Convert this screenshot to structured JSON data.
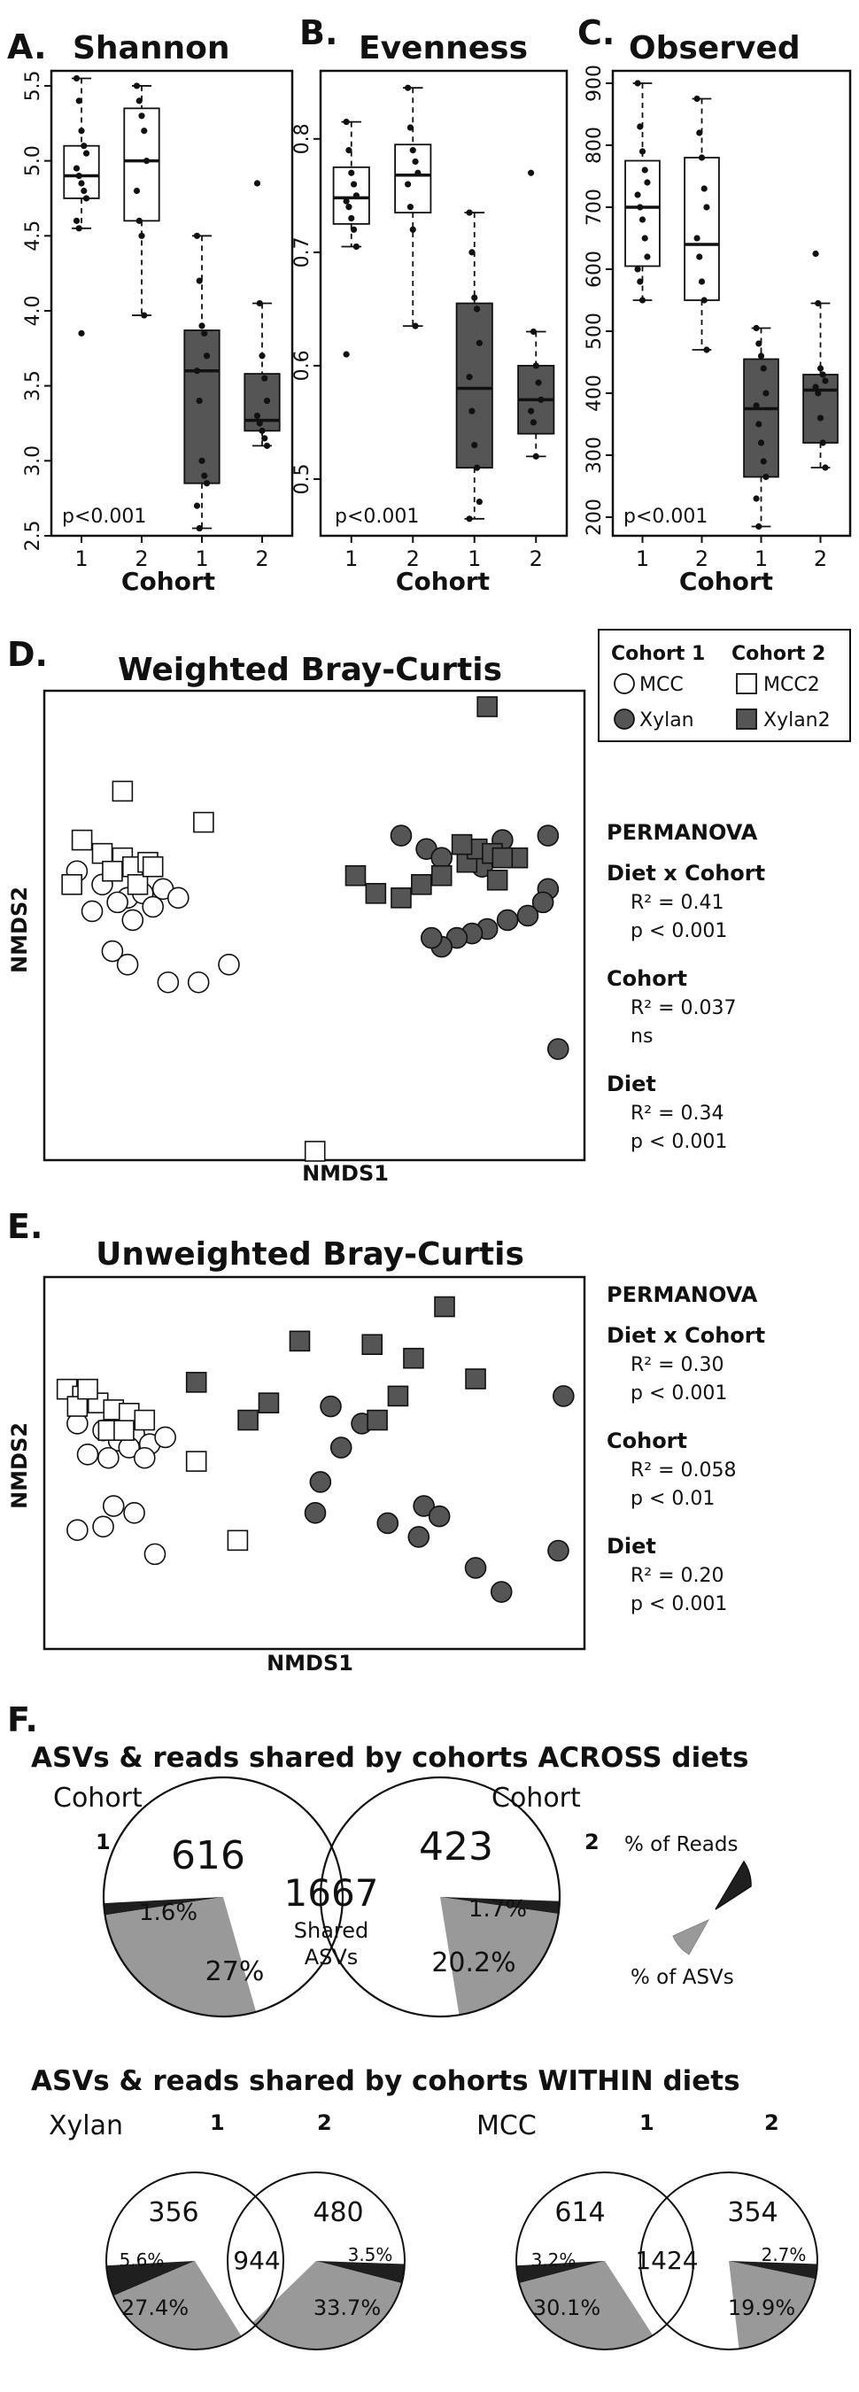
{
  "chart_data": [
    {
      "panel": "A.",
      "title": "Shannon",
      "type": "box",
      "xlabel": "Cohort",
      "ylim": [
        2.5,
        5.6
      ],
      "yticks": [
        "2.5",
        "3.0",
        "3.5",
        "4.0",
        "4.5",
        "5.0",
        "5.5"
      ],
      "categories": [
        "1",
        "2",
        "1",
        "2"
      ],
      "groups": [
        "MCC cohort 1",
        "MCC cohort 2",
        "Xylan cohort 1",
        "Xylan cohort 2"
      ],
      "fills": [
        "#ffffff",
        "#ffffff",
        "#555555",
        "#555555"
      ],
      "boxes": [
        {
          "q1": 4.75,
          "median": 4.9,
          "q3": 5.1,
          "wlo": 4.55,
          "whi": 5.55
        },
        {
          "q1": 4.6,
          "median": 5.0,
          "q3": 5.35,
          "wlo": 3.97,
          "whi": 5.5
        },
        {
          "q1": 2.85,
          "median": 3.6,
          "q3": 3.87,
          "wlo": 2.55,
          "whi": 4.5
        },
        {
          "q1": 3.2,
          "median": 3.27,
          "q3": 3.58,
          "wlo": 3.1,
          "whi": 4.05
        }
      ],
      "points": [
        [
          5.55,
          5.4,
          5.2,
          5.1,
          5.05,
          4.95,
          4.9,
          4.85,
          4.8,
          4.75,
          4.6,
          4.55,
          3.85
        ],
        [
          5.5,
          5.4,
          5.3,
          5.2,
          5.0,
          4.8,
          4.6,
          4.5,
          3.97
        ],
        [
          4.5,
          4.2,
          3.9,
          3.85,
          3.7,
          3.6,
          3.4,
          3.0,
          2.9,
          2.85,
          2.7,
          2.55
        ],
        [
          4.85,
          4.05,
          3.7,
          3.55,
          3.4,
          3.3,
          3.25,
          3.2,
          3.15,
          3.1
        ]
      ],
      "pvalue": "p<0.001"
    },
    {
      "panel": "B.",
      "title": "Evenness",
      "type": "box",
      "xlabel": "Cohort",
      "ylim": [
        0.45,
        0.86
      ],
      "yticks": [
        "0.5",
        "0.6",
        "0.7",
        "0.8"
      ],
      "categories": [
        "1",
        "2",
        "1",
        "2"
      ],
      "groups": [
        "MCC cohort 1",
        "MCC cohort 2",
        "Xylan cohort 1",
        "Xylan cohort 2"
      ],
      "fills": [
        "#ffffff",
        "#ffffff",
        "#555555",
        "#555555"
      ],
      "boxes": [
        {
          "q1": 0.725,
          "median": 0.748,
          "q3": 0.775,
          "wlo": 0.705,
          "whi": 0.815
        },
        {
          "q1": 0.735,
          "median": 0.768,
          "q3": 0.795,
          "wlo": 0.635,
          "whi": 0.845
        },
        {
          "q1": 0.51,
          "median": 0.58,
          "q3": 0.655,
          "wlo": 0.465,
          "whi": 0.735
        },
        {
          "q1": 0.54,
          "median": 0.57,
          "q3": 0.6,
          "wlo": 0.52,
          "whi": 0.63
        }
      ],
      "points": [
        [
          0.815,
          0.79,
          0.77,
          0.76,
          0.75,
          0.745,
          0.74,
          0.73,
          0.72,
          0.705,
          0.61
        ],
        [
          0.845,
          0.81,
          0.79,
          0.78,
          0.77,
          0.76,
          0.74,
          0.72,
          0.635
        ],
        [
          0.735,
          0.7,
          0.66,
          0.65,
          0.62,
          0.59,
          0.56,
          0.53,
          0.51,
          0.48,
          0.465
        ],
        [
          0.77,
          0.63,
          0.6,
          0.585,
          0.57,
          0.56,
          0.55,
          0.52
        ]
      ],
      "pvalue": "p<0.001"
    },
    {
      "panel": "C.",
      "title": "Observed",
      "type": "box",
      "xlabel": "Cohort",
      "ylim": [
        170,
        920
      ],
      "yticks": [
        "200",
        "300",
        "400",
        "500",
        "600",
        "700",
        "800",
        "900"
      ],
      "categories": [
        "1",
        "2",
        "1",
        "2"
      ],
      "groups": [
        "MCC cohort 1",
        "MCC cohort 2",
        "Xylan cohort 1",
        "Xylan cohort 2"
      ],
      "fills": [
        "#ffffff",
        "#ffffff",
        "#555555",
        "#555555"
      ],
      "boxes": [
        {
          "q1": 605,
          "median": 700,
          "q3": 775,
          "wlo": 550,
          "whi": 900
        },
        {
          "q1": 550,
          "median": 640,
          "q3": 780,
          "wlo": 470,
          "whi": 875
        },
        {
          "q1": 265,
          "median": 375,
          "q3": 455,
          "wlo": 185,
          "whi": 505
        },
        {
          "q1": 320,
          "median": 405,
          "q3": 430,
          "wlo": 280,
          "whi": 545
        }
      ],
      "points": [
        [
          900,
          830,
          790,
          760,
          740,
          720,
          700,
          680,
          650,
          620,
          600,
          580,
          550
        ],
        [
          875,
          820,
          780,
          730,
          700,
          650,
          620,
          580,
          550,
          470
        ],
        [
          505,
          480,
          460,
          440,
          400,
          380,
          350,
          320,
          290,
          265,
          230,
          185
        ],
        [
          625,
          545,
          440,
          430,
          420,
          410,
          400,
          360,
          320,
          280
        ]
      ],
      "pvalue": "p<0.001"
    },
    {
      "panel": "D.",
      "title": "Weighted Bray-Curtis",
      "type": "scatter",
      "xlabel": "NMDS1",
      "ylabel": "NMDS2",
      "xlim": [
        0,
        1
      ],
      "ylim": [
        0,
        1
      ],
      "series": [
        {
          "name": "MCC",
          "cohort": "Cohort 1",
          "marker": "circle",
          "fill": "#ffffff",
          "x": [
            0.04,
            0.09,
            0.14,
            0.17,
            0.21,
            0.24,
            0.07,
            0.12,
            0.15,
            0.19,
            0.11,
            0.14,
            0.22,
            0.28,
            0.34
          ],
          "y": [
            0.63,
            0.6,
            0.57,
            0.58,
            0.59,
            0.57,
            0.54,
            0.56,
            0.52,
            0.55,
            0.45,
            0.42,
            0.38,
            0.38,
            0.42
          ]
        },
        {
          "name": "MCC2",
          "cohort": "Cohort 2",
          "marker": "square",
          "fill": "#ffffff",
          "x": [
            0.03,
            0.05,
            0.09,
            0.13,
            0.15,
            0.18,
            0.11,
            0.16,
            0.19,
            0.13,
            0.29,
            0.51
          ],
          "y": [
            0.6,
            0.7,
            0.67,
            0.66,
            0.64,
            0.65,
            0.63,
            0.6,
            0.64,
            0.81,
            0.74,
            0.0
          ]
        },
        {
          "name": "Xylan",
          "cohort": "Cohort 1",
          "marker": "circle",
          "fill": "#555555",
          "x": [
            0.68,
            0.73,
            0.76,
            0.84,
            0.88,
            0.97,
            0.97,
            0.96,
            0.93,
            0.89,
            0.85,
            0.82,
            0.79,
            0.76,
            0.74,
            0.99
          ],
          "y": [
            0.71,
            0.68,
            0.66,
            0.64,
            0.7,
            0.71,
            0.59,
            0.56,
            0.53,
            0.52,
            0.5,
            0.49,
            0.48,
            0.46,
            0.48,
            0.23
          ]
        },
        {
          "name": "Xylan2",
          "cohort": "Cohort 2",
          "marker": "square",
          "fill": "#555555",
          "x": [
            0.59,
            0.63,
            0.68,
            0.72,
            0.76,
            0.81,
            0.83,
            0.86,
            0.87,
            0.91,
            0.85,
            0.8,
            0.88
          ],
          "y": [
            0.62,
            0.58,
            0.57,
            0.6,
            0.62,
            0.65,
            0.68,
            0.67,
            0.61,
            0.66,
            1.0,
            0.69,
            0.66
          ]
        }
      ]
    },
    {
      "panel": "E.",
      "title": "Unweighted Bray-Curtis",
      "type": "scatter",
      "xlabel": "NMDS1",
      "ylabel": "NMDS2",
      "xlim": [
        0,
        1
      ],
      "ylim": [
        0,
        1
      ],
      "series": [
        {
          "name": "MCC",
          "cohort": "Cohort 1",
          "marker": "circle",
          "fill": "#ffffff",
          "x": [
            0.04,
            0.09,
            0.12,
            0.15,
            0.18,
            0.21,
            0.06,
            0.1,
            0.14,
            0.17,
            0.11,
            0.04,
            0.09,
            0.15,
            0.19
          ],
          "y": [
            0.62,
            0.6,
            0.57,
            0.59,
            0.56,
            0.58,
            0.53,
            0.52,
            0.55,
            0.52,
            0.38,
            0.31,
            0.32,
            0.36,
            0.24
          ]
        },
        {
          "name": "MCC2",
          "cohort": "Cohort 2",
          "marker": "square",
          "fill": "#ffffff",
          "x": [
            0.02,
            0.05,
            0.08,
            0.11,
            0.14,
            0.17,
            0.04,
            0.1,
            0.13,
            0.27,
            0.35,
            0.06
          ],
          "y": [
            0.72,
            0.7,
            0.68,
            0.66,
            0.65,
            0.63,
            0.67,
            0.6,
            0.6,
            0.51,
            0.28,
            0.72
          ]
        },
        {
          "name": "Xylan",
          "cohort": "Cohort 1",
          "marker": "circle",
          "fill": "#555555",
          "x": [
            0.53,
            0.59,
            0.55,
            0.51,
            0.5,
            0.64,
            0.71,
            0.74,
            0.7,
            0.81,
            0.98,
            0.97,
            0.86
          ],
          "y": [
            0.67,
            0.62,
            0.55,
            0.45,
            0.36,
            0.33,
            0.38,
            0.35,
            0.29,
            0.2,
            0.7,
            0.25,
            0.13
          ]
        },
        {
          "name": "Xylan2",
          "cohort": "Cohort 2",
          "marker": "square",
          "fill": "#555555",
          "x": [
            0.27,
            0.41,
            0.37,
            0.47,
            0.61,
            0.69,
            0.75,
            0.81,
            0.66,
            0.62
          ],
          "y": [
            0.74,
            0.68,
            0.63,
            0.86,
            0.85,
            0.81,
            0.96,
            0.75,
            0.7,
            0.63
          ]
        }
      ]
    }
  ],
  "panels": {
    "A": {
      "label": "A.",
      "title": "Shannon"
    },
    "B": {
      "label": "B.",
      "title": "Evenness"
    },
    "C": {
      "label": "C.",
      "title": "Observed"
    },
    "D": {
      "label": "D.",
      "title": "Weighted Bray-Curtis",
      "xlabel": "NMDS1",
      "ylabel": "NMDS2"
    },
    "E": {
      "label": "E.",
      "title": "Unweighted Bray-Curtis",
      "xlabel": "NMDS1",
      "ylabel": "NMDS2"
    },
    "F": {
      "label": "F."
    }
  },
  "axis_common": {
    "xlabel": "Cohort",
    "pvalue": "p<0.001"
  },
  "legend": {
    "cohort1": "Cohort 1",
    "cohort2": "Cohort 2",
    "mcc": "MCC",
    "mcc2": "MCC2",
    "xylan": "Xylan",
    "xylan2": "Xylan2"
  },
  "permanova_d": {
    "title": "PERMANOVA",
    "diet_cohort": "Diet x Cohort",
    "dc_r2": "R² = 0.41",
    "dc_p": "p < 0.001",
    "cohort": "Cohort",
    "c_r2": "R² = 0.037",
    "c_p": "ns",
    "diet": "Diet",
    "d_r2": "R² = 0.34",
    "d_p": "p < 0.001"
  },
  "permanova_e": {
    "title": "PERMANOVA",
    "diet_cohort": "Diet x Cohort",
    "dc_r2": "R² = 0.30",
    "dc_p": "p < 0.001",
    "cohort": "Cohort",
    "c_r2": "R² = 0.058",
    "c_p": "p < 0.01",
    "diet": "Diet",
    "d_r2": "R² = 0.20",
    "d_p": "p < 0.001"
  },
  "venn_across": {
    "heading": "ASVs & reads shared by cohorts ACROSS diets",
    "cohort_word": "Cohort",
    "c1": "1",
    "c2": "2",
    "left_only": "616",
    "right_only": "423",
    "shared": "1667",
    "shared_word": "Shared",
    "asvs_word": "ASVs",
    "left_reads": "1.6%",
    "left_asvs": "27%",
    "right_reads": "1.7%",
    "right_asvs": "20.2%",
    "key_reads": "% of Reads",
    "key_asvs": "% of ASVs",
    "read_wedge_pct": [
      1.6,
      1.7
    ],
    "asv_wedge_pct": [
      27,
      20.2
    ]
  },
  "venn_within": {
    "heading": "ASVs & reads shared by cohorts WITHIN diets",
    "xylan": {
      "label": "Xylan",
      "c1": "1",
      "c2": "2",
      "left": "356",
      "right": "480",
      "shared": "944",
      "left_reads": "5.6%",
      "left_asvs": "27.4%",
      "right_reads": "3.5%",
      "right_asvs": "33.7%",
      "read_wedge_pct": [
        5.6,
        3.5
      ],
      "asv_wedge_pct": [
        27.4,
        33.7
      ]
    },
    "mcc": {
      "label": "MCC",
      "c1": "1",
      "c2": "2",
      "left": "614",
      "right": "354",
      "shared": "1424",
      "left_reads": "3.2%",
      "left_asvs": "30.1%",
      "right_reads": "2.7%",
      "right_asvs": "19.9%",
      "read_wedge_pct": [
        3.2,
        2.7
      ],
      "asv_wedge_pct": [
        30.1,
        19.9
      ]
    }
  },
  "colors": {
    "dark": "#555555",
    "reads": "#1f1f1f",
    "asvs": "#999999",
    "line": "#111111"
  }
}
